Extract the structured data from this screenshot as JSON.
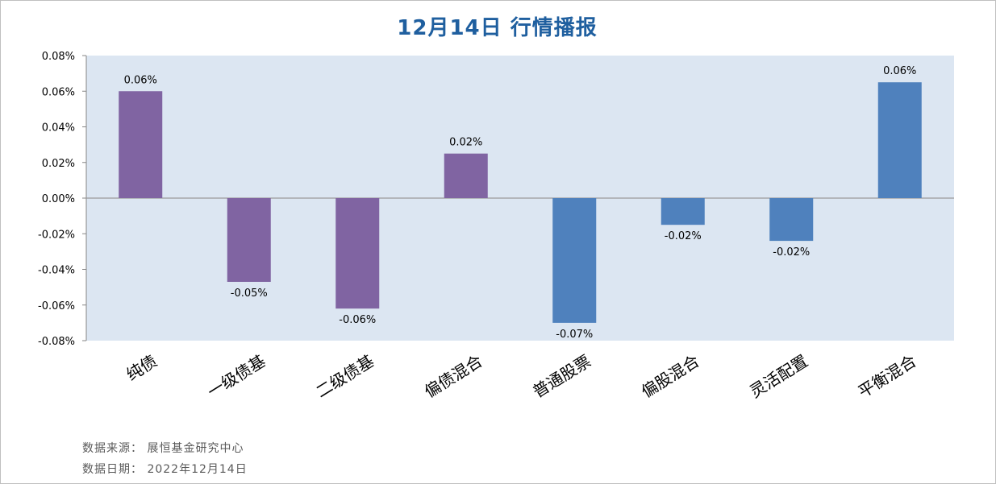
{
  "chart_data": {
    "type": "bar",
    "title": "12月14日  行情播报",
    "categories": [
      "纯债",
      "一级债基",
      "二级债基",
      "偏债混合",
      "普通股票",
      "偏股混合",
      "灵活配置",
      "平衡混合"
    ],
    "values": [
      0.06,
      -0.047,
      -0.062,
      0.025,
      -0.07,
      -0.015,
      -0.024,
      0.065
    ],
    "data_labels": [
      "0.06%",
      "-0.05%",
      "-0.06%",
      "0.02%",
      "-0.07%",
      "-0.02%",
      "-0.02%",
      "0.06%"
    ],
    "bar_colors": [
      "#8064a2",
      "#8064a2",
      "#8064a2",
      "#8064a2",
      "#4f81bd",
      "#4f81bd",
      "#4f81bd",
      "#4f81bd"
    ],
    "yticks": [
      0.08,
      0.06,
      0.04,
      0.02,
      0.0,
      -0.02,
      -0.04,
      -0.06,
      -0.08
    ],
    "ytick_labels": [
      "0.08%",
      "0.06%",
      "0.04%",
      "0.02%",
      "0.00%",
      "-0.02%",
      "-0.04%",
      "-0.06%",
      "-0.08%"
    ],
    "ylim": [
      -0.08,
      0.08
    ],
    "plot_background": "#dce6f2",
    "grid": false,
    "legend": "none"
  },
  "footer": {
    "source": "数据来源：  展恒基金研究中心",
    "date": "数据日期：  2022年12月14日"
  }
}
